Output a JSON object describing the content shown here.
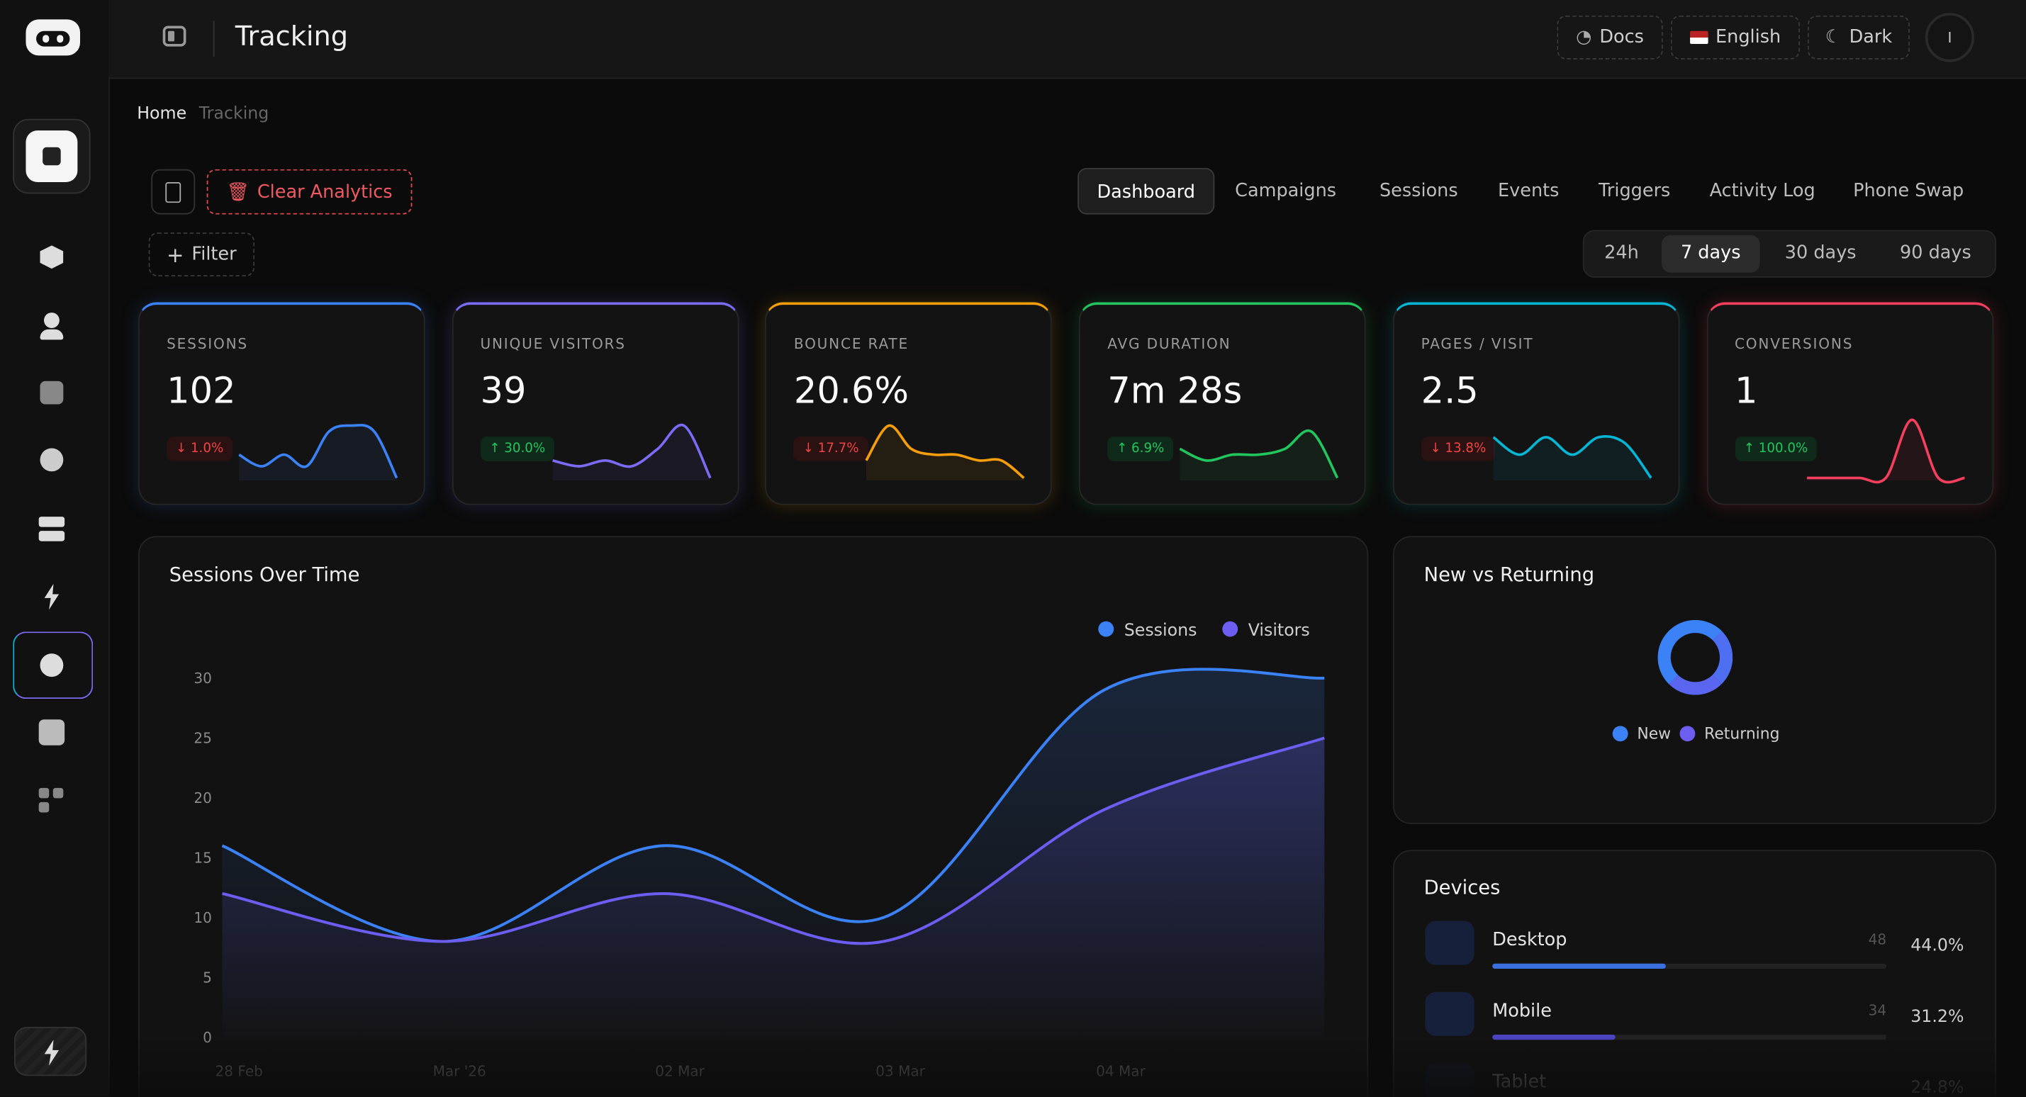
{
  "header": {
    "title": "Tracking",
    "buttons": [
      "Docs",
      "English",
      "Dark"
    ],
    "avatar": "I"
  },
  "breadcrumb": [
    "Home",
    "Tracking"
  ],
  "toolbar": {
    "clear": "Clear Analytics",
    "filter": "Filter"
  },
  "tabs": [
    "Dashboard",
    "Campaigns",
    "Sessions",
    "Events",
    "Triggers",
    "Activity Log",
    "Phone Swap"
  ],
  "periods": [
    "24h",
    "7 days",
    "30 days",
    "90 days"
  ],
  "stats": [
    {
      "label": "SESSIONS",
      "value": "102",
      "change": "↓ 1.0%",
      "up": false,
      "color": "#3b82f6",
      "trend": [
        4,
        2,
        4,
        2,
        8,
        9,
        8,
        0
      ]
    },
    {
      "label": "UNIQUE VISITORS",
      "value": "39",
      "change": "↑ 30.0%",
      "up": true,
      "color": "#7c6cf5",
      "trend": [
        3,
        2,
        3,
        2,
        5,
        9,
        0
      ]
    },
    {
      "label": "BOUNCE RATE",
      "value": "20.6%",
      "change": "↓ 17.7%",
      "up": false,
      "color": "#f59e0b",
      "trend": [
        3,
        9,
        5,
        4,
        4,
        3,
        3,
        0
      ]
    },
    {
      "label": "AVG DURATION",
      "value": "7m 28s",
      "change": "↑ 6.9%",
      "up": true,
      "color": "#22c55e",
      "trend": [
        5,
        3,
        4,
        4,
        5,
        8,
        0
      ]
    },
    {
      "label": "PAGES / VISIT",
      "value": "2.5",
      "change": "↓ 13.8%",
      "up": false,
      "color": "#06b6d4",
      "trend": [
        7,
        4,
        7,
        4,
        7,
        6,
        0
      ]
    },
    {
      "label": "CONVERSIONS",
      "value": "1",
      "change": "↑ 100.0%",
      "up": true,
      "color": "#f43f5e",
      "trend": [
        0,
        0,
        0,
        0,
        10,
        0,
        0
      ]
    }
  ],
  "sessions_chart": {
    "type": "line",
    "title": "Sessions Over Time",
    "categories": [
      "28 Feb",
      "Mar '26",
      "02 Mar",
      "03 Mar",
      "04 Mar",
      null
    ],
    "series": [
      {
        "name": "Sessions",
        "color": "#3b82f6",
        "values": [
          16,
          8,
          16,
          10,
          29,
          30
        ]
      },
      {
        "name": "Visitors",
        "color": "#6d5df0",
        "values": [
          12,
          8,
          12,
          8,
          19,
          25
        ]
      }
    ],
    "ylim": [
      0,
      30
    ],
    "yticks": [
      0,
      5,
      10,
      15,
      20,
      25,
      30
    ]
  },
  "new_vs_returning": {
    "title": "New vs Returning",
    "legend": [
      {
        "name": "New",
        "color": "#3b82f6"
      },
      {
        "name": "Returning",
        "color": "#6d5df0"
      }
    ]
  },
  "devices": {
    "title": "Devices",
    "items": [
      {
        "name": "Desktop",
        "count": 48,
        "percent": 44.0,
        "percent_label": "44.0%"
      },
      {
        "name": "Mobile",
        "count": 34,
        "percent": 31.2,
        "percent_label": "31.2%"
      },
      {
        "name": "Tablet",
        "percent": 24.8,
        "percent_label": "24.8%"
      }
    ]
  }
}
